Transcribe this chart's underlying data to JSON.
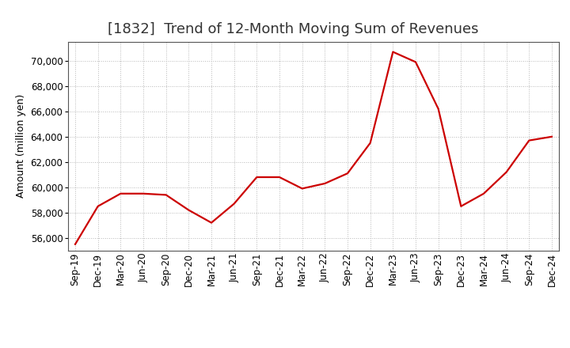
{
  "title": "[1832]  Trend of 12-Month Moving Sum of Revenues",
  "ylabel": "Amount (million yen)",
  "background_color": "#ffffff",
  "line_color": "#cc0000",
  "grid_color": "#b0b0b0",
  "x_labels": [
    "Sep-19",
    "Dec-19",
    "Mar-20",
    "Jun-20",
    "Sep-20",
    "Dec-20",
    "Mar-21",
    "Jun-21",
    "Sep-21",
    "Dec-21",
    "Mar-22",
    "Jun-22",
    "Sep-22",
    "Dec-22",
    "Mar-23",
    "Jun-23",
    "Sep-23",
    "Dec-23",
    "Mar-24",
    "Jun-24",
    "Sep-24",
    "Dec-24"
  ],
  "values": [
    55500,
    58500,
    59500,
    59500,
    59400,
    58200,
    57200,
    58700,
    60800,
    60800,
    59900,
    60300,
    61100,
    63500,
    70700,
    69900,
    66200,
    58500,
    59500,
    61200,
    63700,
    64000
  ],
  "ylim": [
    55000,
    71500
  ],
  "yticks": [
    56000,
    58000,
    60000,
    62000,
    64000,
    66000,
    68000,
    70000
  ],
  "title_fontsize": 13,
  "axis_fontsize": 9,
  "tick_fontsize": 8.5
}
